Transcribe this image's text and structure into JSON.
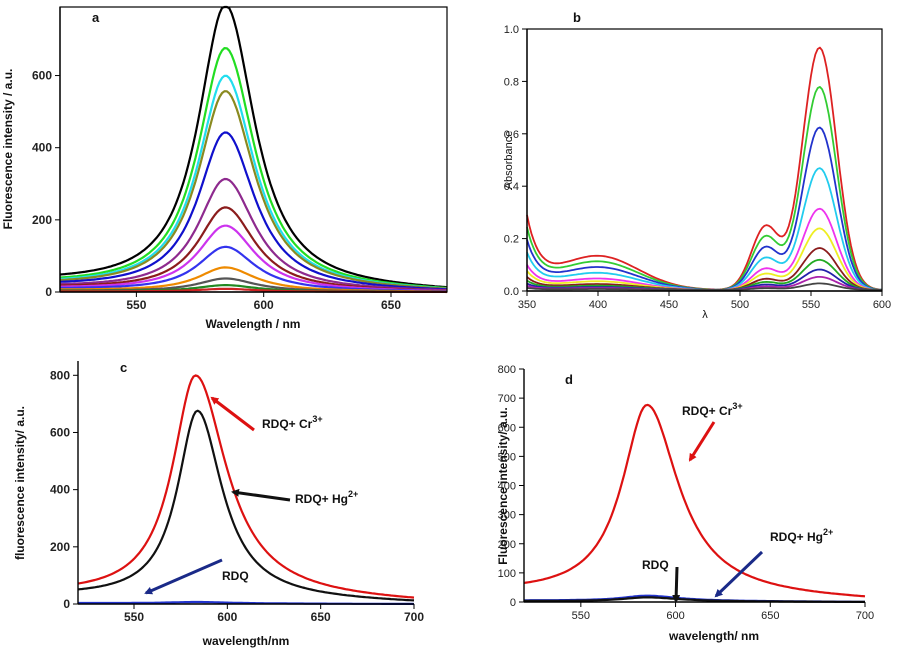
{
  "chart_data": [
    {
      "panel": "a",
      "type": "line",
      "xlabel": "Wavelength / nm",
      "ylabel": "Fluorescence intensity / a.u.",
      "xlim": [
        520,
        672
      ],
      "ylim": [
        0,
        790
      ],
      "xticks": [
        550,
        600,
        650
      ],
      "yticks": [
        0,
        200,
        400,
        600
      ],
      "peak_x": 585,
      "width_l": 14,
      "width_r": 15,
      "series": [
        {
          "color": "#000000",
          "peak": 785,
          "base": 30
        },
        {
          "color": "#22dd22",
          "peak": 668,
          "base": 24
        },
        {
          "color": "#22ddee",
          "peak": 592,
          "base": 22
        },
        {
          "color": "#8a8a20",
          "peak": 550,
          "base": 20
        },
        {
          "color": "#1010cc",
          "peak": 436,
          "base": 18
        },
        {
          "color": "#8e2a8e",
          "peak": 308,
          "base": 15
        },
        {
          "color": "#8b1c1c",
          "peak": 230,
          "base": 13
        },
        {
          "color": "#cc33ee",
          "peak": 180,
          "base": 11
        },
        {
          "color": "#3333ee",
          "peak": 122,
          "base": 9
        },
        {
          "color": "#ee8a00",
          "peak": 66,
          "base": 6
        },
        {
          "color": "#555555",
          "peak": 36,
          "base": 4
        },
        {
          "color": "#228822",
          "peak": 18,
          "base": 3
        },
        {
          "color": "#cc2222",
          "peak": 8,
          "base": 2
        }
      ]
    },
    {
      "panel": "b",
      "type": "line",
      "xlabel": "λ",
      "ylabel": "Absorbance",
      "xlim": [
        350,
        600
      ],
      "ylim": [
        0,
        1.0
      ],
      "xticks": [
        350,
        400,
        450,
        500,
        550,
        600
      ],
      "yticks": [
        0.0,
        0.2,
        0.4,
        0.6,
        0.8,
        1.0
      ],
      "peak_x": 556,
      "series": [
        {
          "color": "#dd2222",
          "peak": 0.925
        },
        {
          "color": "#33cc33",
          "peak": 0.775
        },
        {
          "color": "#2233cc",
          "peak": 0.62
        },
        {
          "color": "#22ccee",
          "peak": 0.465
        },
        {
          "color": "#ee33ee",
          "peak": 0.31
        },
        {
          "color": "#eeee22",
          "peak": 0.235
        },
        {
          "color": "#8b1c1c",
          "peak": 0.16
        },
        {
          "color": "#22aa22",
          "peak": 0.115
        },
        {
          "color": "#2222aa",
          "peak": 0.078
        },
        {
          "color": "#aa22aa",
          "peak": 0.05
        },
        {
          "color": "#444444",
          "peak": 0.025
        }
      ]
    },
    {
      "panel": "c",
      "type": "line",
      "xlabel": "wavelength/nm",
      "ylabel": "fluorescence intensity/ a.u.",
      "xlim": [
        520,
        700
      ],
      "ylim": [
        0,
        850
      ],
      "xticks": [
        550,
        600,
        650,
        700
      ],
      "yticks": [
        0,
        200,
        400,
        600,
        800
      ],
      "series": [
        {
          "color": "#dd1111",
          "peak_x": 583,
          "peak": 790,
          "base": 30,
          "wl": 15,
          "wr": 20
        },
        {
          "color": "#111111",
          "peak_x": 584,
          "peak": 668,
          "base": 25,
          "wl": 13,
          "wr": 16
        },
        {
          "color": "#2233cc",
          "peak_x": 584,
          "peak": 6,
          "base": 3,
          "wl": 20,
          "wr": 20
        }
      ],
      "annotations": [
        "RDQ+ Cr",
        "3+",
        "RDQ+ Hg",
        "2+",
        "RDQ"
      ]
    },
    {
      "panel": "d",
      "type": "line",
      "xlabel": "wavelength/ nm",
      "ylabel": "Fluorescence intensity/ a.u.",
      "xlim": [
        520,
        700
      ],
      "ylim": [
        0,
        800
      ],
      "xticks": [
        550,
        600,
        650,
        700
      ],
      "yticks": [
        0,
        100,
        200,
        300,
        400,
        500,
        600,
        700,
        800
      ],
      "ytick_labels": [
        "0",
        "100",
        "200",
        "300",
        "400",
        "500",
        "600",
        "700",
        "800"
      ],
      "series": [
        {
          "color": "#dd1111",
          "peak_x": 585,
          "peak": 668,
          "base": 28,
          "wl": 16,
          "wr": 20
        },
        {
          "color": "#2233cc",
          "peak_x": 585,
          "peak": 20,
          "base": 5,
          "wl": 16,
          "wr": 20
        },
        {
          "color": "#111111",
          "peak_x": 585,
          "peak": 15,
          "base": 3,
          "wl": 16,
          "wr": 20
        }
      ],
      "annotations": [
        "RDQ+ Cr",
        "3+",
        "RDQ+ Hg",
        "2+",
        "RDQ"
      ]
    }
  ],
  "panel_labels": [
    "a",
    "b",
    "c",
    "d"
  ],
  "annotations": {
    "c_cr": "RDQ+ Cr",
    "c_cr_sup": "3+",
    "c_hg": "RDQ+ Hg",
    "c_hg_sup": "2+",
    "c_rdq": "RDQ",
    "d_cr": "RDQ+ Cr",
    "d_cr_sup": "3+",
    "d_hg": "RDQ+ Hg",
    "d_hg_sup": "2+",
    "d_rdq": "RDQ"
  }
}
